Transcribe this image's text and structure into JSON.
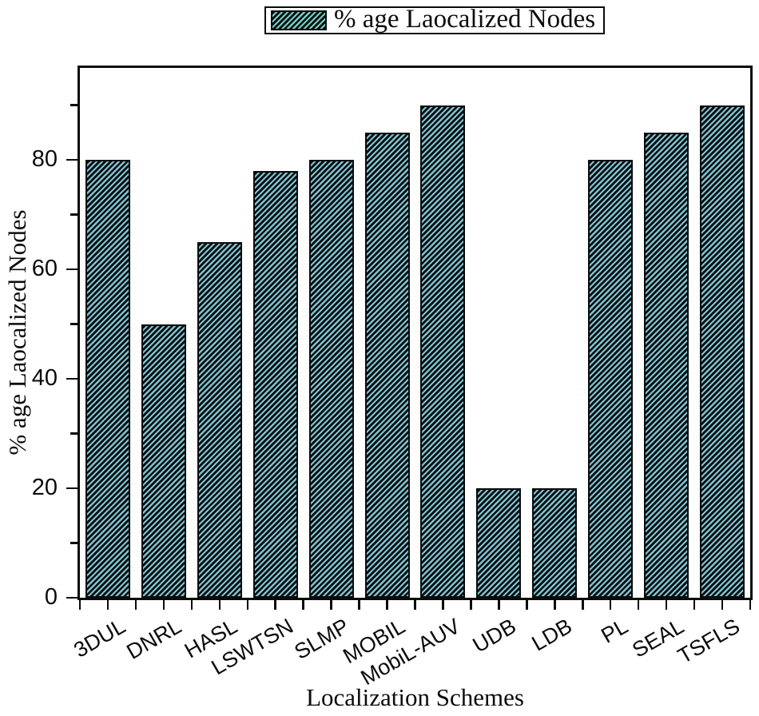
{
  "legend": {
    "label": "% age Laocalized Nodes"
  },
  "axes": {
    "x_title": "Localization Schemes",
    "y_title": "% age Laocalized Nodes"
  },
  "chart_data": {
    "type": "bar",
    "title": "",
    "categories": [
      "3DUL",
      "DNRL",
      "HASL",
      "LSWTSN",
      "SLMP",
      "MOBIL",
      "MobiL-AUV",
      "UDB",
      "LDB",
      "PL",
      "SEAL",
      "TSFLS"
    ],
    "values": [
      80,
      50,
      65,
      78,
      80,
      85,
      90,
      20,
      20,
      80,
      85,
      90
    ],
    "series": [
      {
        "name": "% age Laocalized Nodes",
        "values": [
          80,
          50,
          65,
          78,
          80,
          85,
          90,
          20,
          20,
          80,
          85,
          90
        ]
      }
    ],
    "xlabel": "Localization Schemes",
    "ylabel": "% age Laocalized Nodes",
    "ylim": [
      0,
      96.8
    ],
    "y_major_ticks": [
      0,
      20,
      40,
      60,
      80
    ],
    "y_minor_ticks": [
      10,
      30,
      50,
      70,
      90
    ],
    "grid": false,
    "legend_position": "top-center",
    "bar_hatch": "forward-diagonal",
    "bar_fill_color": "#7CC3D3",
    "legend_swatch_color": "#6ED0C7",
    "axis_color": "#0b0b0b"
  }
}
